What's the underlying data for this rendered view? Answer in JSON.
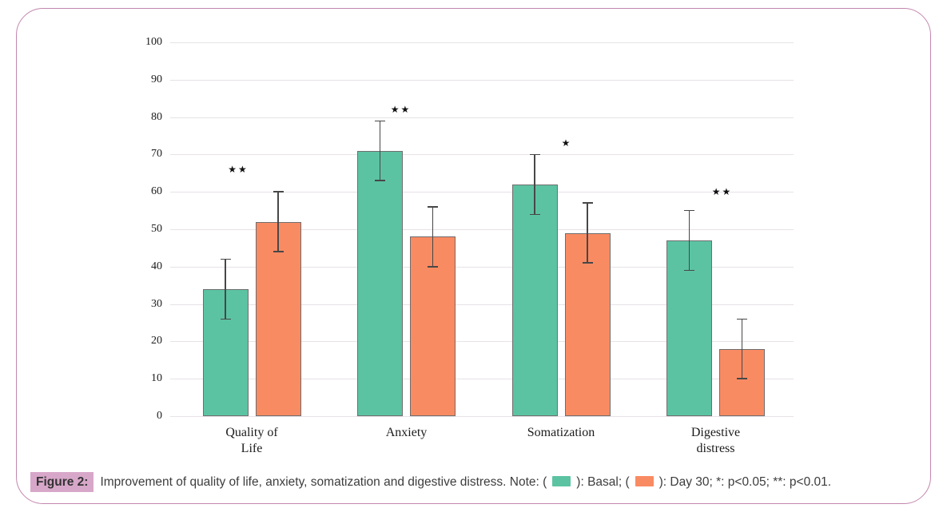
{
  "page": {
    "background": "#ffffff",
    "frame_border_color": "#c286ae"
  },
  "caption": {
    "figure_label": "Figure 2:",
    "figure_label_highlight": "#d7a7c9",
    "part1": "Improvement of quality of life, anxiety, somatization and digestive distress. Note: (",
    "part2": "): Basal; (",
    "part3": "): Day 30; *: p<0.05; **: p<0.01.",
    "text_color": "#3d3d3d"
  },
  "chart_data": {
    "type": "bar",
    "title": "",
    "xlabel": "",
    "ylabel": "",
    "categories": [
      "Quality of Life",
      "Anxiety",
      "Somatization",
      "Digestive distress"
    ],
    "categories_display": [
      [
        "Quality of",
        "Life"
      ],
      [
        "Anxiety"
      ],
      [
        "Somatization"
      ],
      [
        "Digestive",
        "distress"
      ]
    ],
    "series": [
      {
        "name": "Basal",
        "color": "#5cc3a2",
        "values": [
          34,
          71,
          62,
          47
        ],
        "error": [
          8,
          8,
          8,
          8
        ]
      },
      {
        "name": "Day 30",
        "color": "#f98b63",
        "values": [
          52,
          48,
          49,
          18
        ],
        "error": [
          8,
          8,
          8,
          8
        ]
      }
    ],
    "annotations": [
      {
        "category": "Quality of Life",
        "stars": 2,
        "level": 66,
        "dx": -17
      },
      {
        "category": "Anxiety",
        "stars": 2,
        "level": 82,
        "dx": -7
      },
      {
        "category": "Somatization",
        "stars": 1,
        "level": 73,
        "dx": 7
      },
      {
        "category": "Digestive distress",
        "stars": 2,
        "level": 60,
        "dx": 8
      }
    ],
    "ylim": [
      0,
      100
    ],
    "ytick_step": 10,
    "grid": "horizontal",
    "gridline_color": "#e7e2e7",
    "bar_outline_color": "#6e6e6e",
    "error_bar_color": "#474747",
    "legend_position": "in-caption",
    "star_glyph": "★"
  }
}
